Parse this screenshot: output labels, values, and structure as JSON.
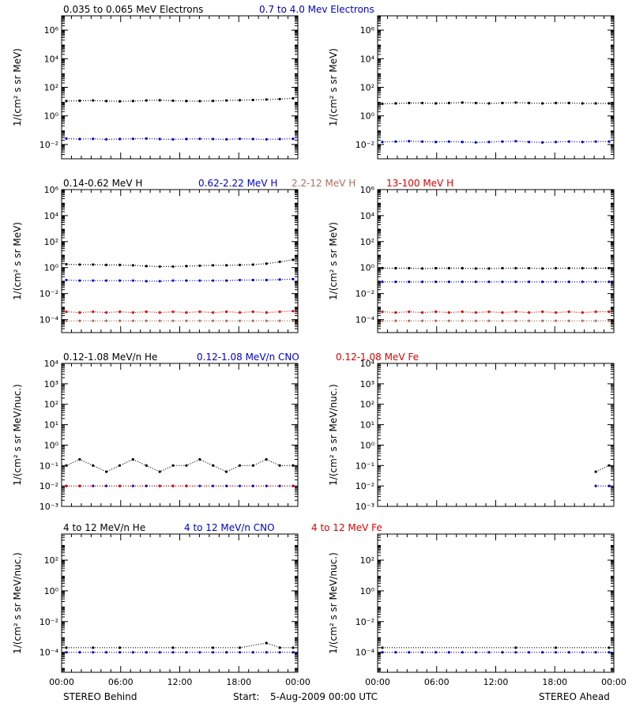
{
  "colors": {
    "black": "#000000",
    "blue": "#0000cc",
    "red": "#dd0000",
    "tan": "#b07060"
  },
  "footer": {
    "start_label": "Start:",
    "start_value": "5-Aug-2009 00:00 UTC",
    "behind_label": "STEREO Behind",
    "ahead_label": "STEREO Ahead"
  },
  "x_ticks": [
    "00:00",
    "06:00",
    "12:00",
    "18:00",
    "00:00"
  ],
  "chart_data": [
    {
      "type": "scatter",
      "row": 1,
      "scale": "log",
      "ylabel": "1/(cm² s sr MeV)",
      "ylim": [
        0.001,
        10000000
      ],
      "yticks": [
        {
          "v": 0.01,
          "t": "10⁻²"
        },
        {
          "v": 1,
          "t": "10⁰"
        },
        {
          "v": 100,
          "t": "10²"
        },
        {
          "v": 10000,
          "t": "10⁴"
        },
        {
          "v": 1000000,
          "t": "10⁶"
        }
      ],
      "legend": [
        {
          "text": "0.035 to 0.065 MeV Electrons",
          "color": "black"
        },
        {
          "text": "0.7 to 4.0 Mev Electrons",
          "color": "blue"
        }
      ],
      "panels": [
        {
          "name": "STEREO Behind",
          "series": [
            {
              "color": "black",
              "values": [
                11,
                11.5,
                12,
                11,
                10.5,
                11,
                12,
                12.5,
                11.5,
                11,
                10.8,
                11.2,
                12,
                12.5,
                13,
                14,
                15,
                17
              ]
            },
            {
              "color": "blue",
              "values": [
                0.026,
                0.024,
                0.025,
                0.023,
                0.024,
                0.025,
                0.026,
                0.024,
                0.023,
                0.024,
                0.025,
                0.024,
                0.023,
                0.025,
                0.024,
                0.023,
                0.024,
                0.025
              ]
            }
          ]
        },
        {
          "name": "STEREO Ahead",
          "series": [
            {
              "color": "black",
              "values": [
                7,
                7.5,
                8,
                8,
                7.5,
                8,
                8.5,
                8,
                7.5,
                8,
                8.5,
                8,
                7.5,
                8,
                8,
                7.5,
                7.5,
                7.5
              ]
            },
            {
              "color": "blue",
              "values": [
                0.015,
                0.016,
                0.017,
                0.016,
                0.015,
                0.016,
                0.015,
                0.014,
                0.015,
                0.016,
                0.017,
                0.015,
                0.014,
                0.015,
                0.016,
                0.015,
                0.016,
                0.016
              ]
            }
          ]
        }
      ]
    },
    {
      "type": "scatter",
      "row": 2,
      "scale": "log",
      "ylabel": "1/(cm² s sr MeV)",
      "ylim": [
        1e-05,
        1000000
      ],
      "yticks": [
        {
          "v": 0.0001,
          "t": "10⁻⁴"
        },
        {
          "v": 0.01,
          "t": "10⁻²"
        },
        {
          "v": 1,
          "t": "10⁰"
        },
        {
          "v": 100,
          "t": "10²"
        },
        {
          "v": 10000,
          "t": "10⁴"
        },
        {
          "v": 1000000,
          "t": "10⁶"
        }
      ],
      "legend": [
        {
          "text": "0.14-0.62 MeV H",
          "color": "black"
        },
        {
          "text": "0.62-2.22 MeV H",
          "color": "blue"
        },
        {
          "text": "2.2-12 MeV H",
          "color": "tan"
        },
        {
          "text": "13-100 MeV H",
          "color": "red"
        }
      ],
      "panels": [
        {
          "name": "STEREO Behind",
          "series": [
            {
              "color": "black",
              "values": [
                1.8,
                1.7,
                1.7,
                1.6,
                1.6,
                1.5,
                1.3,
                1.2,
                1.2,
                1.3,
                1.4,
                1.5,
                1.5,
                1.6,
                1.7,
                2,
                2.8,
                4
              ]
            },
            {
              "color": "blue",
              "values": [
                0.11,
                0.1,
                0.1,
                0.1,
                0.1,
                0.1,
                0.09,
                0.09,
                0.1,
                0.1,
                0.1,
                0.1,
                0.1,
                0.11,
                0.11,
                0.11,
                0.12,
                0.13
              ]
            },
            {
              "color": "red",
              "values": [
                0.0004,
                0.00035,
                0.0004,
                0.00035,
                0.0004,
                0.00035,
                0.0004,
                0.00035,
                0.0004,
                0.00035,
                0.0004,
                0.00035,
                0.0004,
                0.00035,
                0.0004,
                0.00035,
                0.0004,
                0.00045
              ]
            },
            {
              "color": "tan",
              "values": [
                8e-05,
                8e-05,
                8e-05,
                8e-05,
                8e-05,
                8e-05,
                8e-05,
                8e-05,
                8e-05,
                8e-05,
                8e-05,
                8e-05,
                8e-05,
                8e-05,
                8e-05,
                8e-05,
                8e-05,
                8e-05
              ]
            }
          ]
        },
        {
          "name": "STEREO Ahead",
          "series": [
            {
              "color": "black",
              "values": [
                0.9,
                0.9,
                0.9,
                0.85,
                0.9,
                0.9,
                0.9,
                0.85,
                0.85,
                0.9,
                0.9,
                0.9,
                0.85,
                0.9,
                0.9,
                0.9,
                0.9,
                0.9
              ]
            },
            {
              "color": "blue",
              "values": [
                0.08,
                0.08,
                0.08,
                0.08,
                0.08,
                0.08,
                0.08,
                0.08,
                0.08,
                0.08,
                0.08,
                0.08,
                0.08,
                0.08,
                0.08,
                0.08,
                0.08,
                0.08
              ]
            },
            {
              "color": "red",
              "values": [
                0.0004,
                0.00035,
                0.0004,
                0.00035,
                0.0004,
                0.00035,
                0.0004,
                0.00035,
                0.0004,
                0.00035,
                0.0004,
                0.00035,
                0.0004,
                0.00035,
                0.0004,
                0.00035,
                0.0004,
                0.0004
              ]
            },
            {
              "color": "tan",
              "values": [
                8e-05,
                8e-05,
                8e-05,
                8e-05,
                8e-05,
                8e-05,
                8e-05,
                8e-05,
                8e-05,
                8e-05,
                8e-05,
                8e-05,
                8e-05,
                8e-05,
                8e-05,
                8e-05,
                8e-05,
                8e-05
              ]
            }
          ]
        }
      ]
    },
    {
      "type": "scatter",
      "row": 3,
      "scale": "log",
      "ylabel": "1/(cm² s sr MeV/nuc.)",
      "ylim": [
        0.001,
        10000
      ],
      "yticks": [
        {
          "v": 0.001,
          "t": "10⁻³"
        },
        {
          "v": 0.01,
          "t": "10⁻²"
        },
        {
          "v": 0.1,
          "t": "10⁻¹"
        },
        {
          "v": 1,
          "t": "10⁰"
        },
        {
          "v": 10,
          "t": "10¹"
        },
        {
          "v": 100,
          "t": "10²"
        },
        {
          "v": 1000,
          "t": "10³"
        },
        {
          "v": 10000,
          "t": "10⁴"
        }
      ],
      "legend": [
        {
          "text": "0.12-1.08 MeV/n He",
          "color": "black"
        },
        {
          "text": "0.12-1.08 MeV/n CNO",
          "color": "blue"
        },
        {
          "text": "0.12-1.08 MeV Fe",
          "color": "red"
        }
      ],
      "panels": [
        {
          "name": "STEREO Behind",
          "series": [
            {
              "color": "black",
              "values": [
                0.1,
                0.2,
                0.1,
                0.05,
                0.1,
                0.2,
                0.1,
                0.05,
                0.1,
                0.1,
                0.2,
                0.1,
                0.05,
                0.1,
                0.1,
                0.2,
                0.1,
                0.1
              ]
            },
            {
              "color": "blue",
              "values": [
                0.01,
                0.01,
                0.01,
                0.01,
                0.01,
                0.01,
                0.01,
                0.01,
                0.01,
                0.01,
                0.01,
                0.01,
                0.01,
                0.01,
                0.01,
                0.01,
                0.01,
                0.01
              ]
            },
            {
              "color": "red",
              "values": [
                0.01,
                0.01,
                null,
                null,
                0.01,
                null,
                null,
                0.01,
                0.01,
                0.01,
                null,
                null,
                null,
                null,
                null,
                null,
                null,
                0.01
              ]
            }
          ]
        },
        {
          "name": "STEREO Ahead",
          "series": [
            {
              "color": "black",
              "values": [
                null,
                null,
                null,
                null,
                null,
                null,
                null,
                null,
                null,
                null,
                null,
                null,
                null,
                null,
                null,
                null,
                0.05,
                0.1
              ]
            },
            {
              "color": "blue",
              "values": [
                null,
                null,
                null,
                null,
                null,
                null,
                null,
                null,
                null,
                null,
                null,
                null,
                null,
                null,
                null,
                null,
                0.01,
                0.01
              ]
            },
            {
              "color": "red",
              "values": [
                null,
                null,
                null,
                null,
                null,
                null,
                null,
                null,
                null,
                null,
                null,
                null,
                null,
                null,
                null,
                null,
                null,
                null
              ]
            }
          ]
        }
      ]
    },
    {
      "type": "scatter",
      "row": 4,
      "scale": "log",
      "ylabel": "1/(cm² s sr MeV/nuc.)",
      "ylim": [
        5e-06,
        5000
      ],
      "yticks": [
        {
          "v": 0.0001,
          "t": "10⁻⁴"
        },
        {
          "v": 0.01,
          "t": "10⁻²"
        },
        {
          "v": 1,
          "t": "10⁰"
        },
        {
          "v": 100,
          "t": "10²"
        }
      ],
      "legend": [
        {
          "text": "4 to 12 MeV/n He",
          "color": "black"
        },
        {
          "text": "4 to 12 MeV/n CNO",
          "color": "blue"
        },
        {
          "text": "4 to 12 MeV Fe",
          "color": "red"
        }
      ],
      "panels": [
        {
          "name": "STEREO Behind",
          "series": [
            {
              "color": "black",
              "values": [
                0.0002,
                null,
                0.0002,
                null,
                0.0002,
                null,
                null,
                null,
                0.0002,
                null,
                null,
                0.0002,
                null,
                0.0002,
                null,
                0.0004,
                0.0002,
                0.0002
              ]
            },
            {
              "color": "blue",
              "values": [
                0.0001,
                0.0001,
                0.0001,
                0.0001,
                0.0001,
                0.0001,
                0.0001,
                0.0001,
                0.0001,
                0.0001,
                0.0001,
                0.0001,
                0.0001,
                0.0001,
                0.0001,
                0.0001,
                0.0001,
                0.0001
              ]
            },
            {
              "color": "red",
              "values": [
                null,
                null,
                null,
                null,
                null,
                null,
                null,
                null,
                null,
                null,
                null,
                null,
                null,
                null,
                null,
                null,
                null,
                null
              ]
            }
          ]
        },
        {
          "name": "STEREO Ahead",
          "series": [
            {
              "color": "black",
              "values": [
                0.0002,
                null,
                null,
                null,
                null,
                null,
                null,
                null,
                null,
                null,
                0.0002,
                null,
                null,
                0.0002,
                null,
                null,
                null,
                0.0002
              ]
            },
            {
              "color": "blue",
              "values": [
                0.0001,
                0.0001,
                0.0001,
                0.0001,
                0.0001,
                0.0001,
                0.0001,
                0.0001,
                0.0001,
                0.0001,
                0.0001,
                0.0001,
                0.0001,
                0.0001,
                0.0001,
                0.0001,
                0.0001,
                0.0001
              ]
            },
            {
              "color": "red",
              "values": [
                null,
                null,
                null,
                null,
                null,
                null,
                null,
                null,
                null,
                null,
                null,
                null,
                null,
                null,
                null,
                null,
                null,
                null
              ]
            }
          ]
        }
      ]
    }
  ]
}
